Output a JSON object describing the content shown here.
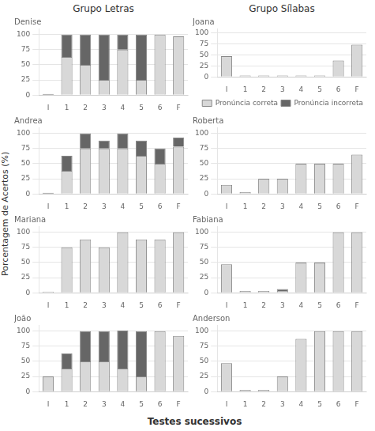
{
  "chart_data": [
    {
      "type": "bar",
      "title": "Denise",
      "annotations": [
        "Grupo Letras"
      ],
      "ylabel": "Porcentagem de Acertos (%)",
      "xlabel": "Testes sucessivos",
      "categories": [
        "I",
        "1",
        "2",
        "3",
        "4",
        "5",
        "6",
        "F"
      ],
      "series": [
        {
          "name": "Pronúncia correta",
          "color": "#d8d8d8",
          "values": [
            0,
            63,
            50,
            25,
            75,
            25,
            100,
            97
          ]
        },
        {
          "name": "Pronúncia incorreta",
          "color": "#666666",
          "values": [
            2,
            37,
            50,
            75,
            25,
            75,
            0,
            0
          ]
        }
      ],
      "stacked": true,
      "ylim": [
        0,
        110
      ],
      "yticks": [
        0,
        25,
        50,
        75,
        100
      ],
      "grid": true
    },
    {
      "type": "bar",
      "title": "Andrea",
      "categories": [
        "I",
        "1",
        "2",
        "3",
        "4",
        "5",
        "6",
        "F"
      ],
      "series": [
        {
          "name": "Pronúncia correta",
          "color": "#d8d8d8",
          "values": [
            0,
            38,
            75,
            75,
            75,
            63,
            50,
            78
          ]
        },
        {
          "name": "Pronúncia incorreta",
          "color": "#666666",
          "values": [
            2,
            25,
            25,
            13,
            25,
            25,
            25,
            15
          ]
        }
      ],
      "stacked": true,
      "ylim": [
        0,
        110
      ],
      "yticks": [
        0,
        25,
        50,
        75,
        100
      ],
      "grid": true
    },
    {
      "type": "bar",
      "title": "Mariana",
      "categories": [
        "I",
        "1",
        "2",
        "3",
        "4",
        "5",
        "6",
        "F"
      ],
      "series": [
        {
          "name": "Pronúncia correta",
          "color": "#d8d8d8",
          "values": [
            2,
            75,
            88,
            75,
            100,
            88,
            88,
            100
          ]
        },
        {
          "name": "Pronúncia incorreta",
          "color": "#666666",
          "values": [
            0,
            0,
            0,
            0,
            0,
            0,
            0,
            0
          ]
        }
      ],
      "stacked": true,
      "ylim": [
        0,
        110
      ],
      "yticks": [
        0,
        25,
        50,
        75,
        100
      ],
      "grid": true
    },
    {
      "type": "bar",
      "title": "João",
      "categories": [
        "I",
        "1",
        "2",
        "3",
        "4",
        "5",
        "6",
        "F"
      ],
      "series": [
        {
          "name": "Pronúncia correta",
          "color": "#d8d8d8",
          "values": [
            25,
            38,
            50,
            50,
            38,
            25,
            100,
            92
          ]
        },
        {
          "name": "Pronúncia incorreta",
          "color": "#666666",
          "values": [
            0,
            25,
            50,
            50,
            63,
            75,
            0,
            0
          ]
        }
      ],
      "stacked": true,
      "ylim": [
        0,
        110
      ],
      "yticks": [
        0,
        25,
        50,
        75,
        100
      ],
      "grid": true
    },
    {
      "type": "bar",
      "title": "Joana",
      "annotations": [
        "Grupo Sílabas"
      ],
      "categories": [
        "I",
        "1",
        "2",
        "3",
        "4",
        "5",
        "6",
        "F"
      ],
      "series": [
        {
          "name": "Pronúncia correta",
          "color": "#d8d8d8",
          "values": [
            47,
            3,
            3,
            3,
            3,
            3,
            37,
            73
          ]
        },
        {
          "name": "Pronúncia incorreta",
          "color": "#666666",
          "values": [
            0,
            0,
            0,
            0,
            0,
            0,
            0,
            0
          ]
        }
      ],
      "stacked": true,
      "ylim": [
        0,
        110
      ],
      "yticks": [
        0,
        25,
        50,
        75,
        100
      ],
      "grid": true,
      "legend": "bottom"
    },
    {
      "type": "bar",
      "title": "Roberta",
      "categories": [
        "I",
        "1",
        "2",
        "3",
        "4",
        "5",
        "6",
        "F"
      ],
      "series": [
        {
          "name": "Pronúncia correta",
          "color": "#d8d8d8",
          "values": [
            15,
            3,
            25,
            25,
            50,
            50,
            50,
            65
          ]
        },
        {
          "name": "Pronúncia incorreta",
          "color": "#666666",
          "values": [
            0,
            0,
            0,
            0,
            0,
            0,
            0,
            0
          ]
        }
      ],
      "stacked": true,
      "ylim": [
        0,
        110
      ],
      "yticks": [
        0,
        25,
        50,
        75,
        100
      ],
      "grid": true
    },
    {
      "type": "bar",
      "title": "Fabiana",
      "categories": [
        "I",
        "1",
        "2",
        "3",
        "4",
        "5",
        "6",
        "F"
      ],
      "series": [
        {
          "name": "Pronúncia correta",
          "color": "#d8d8d8",
          "values": [
            47,
            3,
            3,
            3,
            50,
            50,
            100,
            100
          ]
        },
        {
          "name": "Pronúncia incorreta",
          "color": "#666666",
          "values": [
            0,
            0,
            0,
            3,
            0,
            0,
            0,
            0
          ]
        }
      ],
      "stacked": true,
      "ylim": [
        0,
        110
      ],
      "yticks": [
        0,
        25,
        50,
        75,
        100
      ],
      "grid": true
    },
    {
      "type": "bar",
      "title": "Anderson",
      "categories": [
        "I",
        "1",
        "2",
        "3",
        "4",
        "5",
        "6",
        "F"
      ],
      "series": [
        {
          "name": "Pronúncia correta",
          "color": "#d8d8d8",
          "values": [
            47,
            3,
            3,
            25,
            87,
            100,
            100,
            100
          ]
        },
        {
          "name": "Pronúncia incorreta",
          "color": "#666666",
          "values": [
            0,
            0,
            0,
            0,
            0,
            0,
            0,
            0
          ]
        }
      ],
      "stacked": true,
      "ylim": [
        0,
        110
      ],
      "yticks": [
        0,
        25,
        50,
        75,
        100
      ],
      "grid": true
    }
  ]
}
